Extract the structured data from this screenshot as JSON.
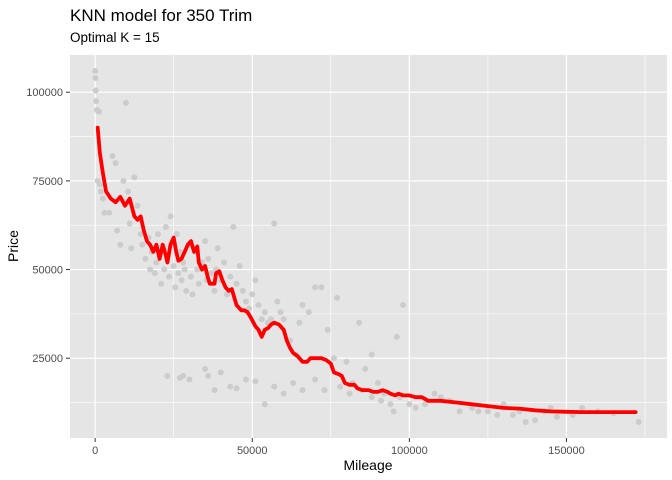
{
  "chart_data": {
    "type": "scatter",
    "title": "KNN model for 350 Trim",
    "subtitle": "Optimal K = 15",
    "xlabel": "Mileage",
    "ylabel": "Price",
    "xlim": [
      -8000,
      182000
    ],
    "ylim": [
      2500,
      110500
    ],
    "x_ticks": [
      0,
      50000,
      100000,
      150000
    ],
    "x_tick_labels": [
      "0",
      "50000",
      "100000",
      "150000"
    ],
    "y_ticks": [
      25000,
      50000,
      75000,
      100000
    ],
    "y_tick_labels": [
      "25000",
      "50000",
      "75000",
      "100000"
    ],
    "grid": true,
    "colors": {
      "panel": "#e5e5e5",
      "grid": "#ffffff",
      "points": "#cccccc",
      "fit_line": "#ff0000"
    },
    "series": [
      {
        "kind": "points",
        "points": [
          [
            0,
            106000
          ],
          [
            100,
            104000
          ],
          [
            200,
            100500
          ],
          [
            300,
            97500
          ],
          [
            600,
            95000
          ],
          [
            1200,
            94500
          ],
          [
            800,
            75000
          ],
          [
            1500,
            74000
          ],
          [
            1800,
            72000
          ],
          [
            2500,
            70000
          ],
          [
            3000,
            66000
          ],
          [
            4500,
            66000
          ],
          [
            5500,
            82000
          ],
          [
            6500,
            80000
          ],
          [
            7000,
            61000
          ],
          [
            8000,
            57000
          ],
          [
            9000,
            75000
          ],
          [
            9800,
            97000
          ],
          [
            10500,
            72000
          ],
          [
            11000,
            63000
          ],
          [
            11500,
            56000
          ],
          [
            12500,
            76000
          ],
          [
            13500,
            68000
          ],
          [
            14500,
            60000
          ],
          [
            15000,
            57000
          ],
          [
            16000,
            53000
          ],
          [
            17000,
            59000
          ],
          [
            17500,
            50000
          ],
          [
            18000,
            55000
          ],
          [
            19000,
            49000
          ],
          [
            19500,
            52000
          ],
          [
            20000,
            60000
          ],
          [
            21000,
            46000
          ],
          [
            21500,
            56000
          ],
          [
            22000,
            50000
          ],
          [
            22500,
            62000
          ],
          [
            23000,
            54000
          ],
          [
            23500,
            48000
          ],
          [
            24000,
            65000
          ],
          [
            24500,
            58000
          ],
          [
            25000,
            51000
          ],
          [
            25500,
            45000
          ],
          [
            26000,
            60000
          ],
          [
            26500,
            49000
          ],
          [
            27000,
            55000
          ],
          [
            27500,
            47000
          ],
          [
            28000,
            52000
          ],
          [
            28500,
            50000
          ],
          [
            29000,
            44000
          ],
          [
            30000,
            57000
          ],
          [
            30500,
            48000
          ],
          [
            31000,
            43000
          ],
          [
            32000,
            55000
          ],
          [
            32500,
            50000
          ],
          [
            33000,
            46000
          ],
          [
            34000,
            52000
          ],
          [
            35000,
            58000
          ],
          [
            35500,
            47000
          ],
          [
            36000,
            53000
          ],
          [
            37000,
            49000
          ],
          [
            38000,
            44000
          ],
          [
            38500,
            50000
          ],
          [
            39000,
            56000
          ],
          [
            40000,
            47000
          ],
          [
            41000,
            52000
          ],
          [
            42000,
            43000
          ],
          [
            43000,
            48000
          ],
          [
            44000,
            62000
          ],
          [
            45000,
            46000
          ],
          [
            46000,
            51000
          ],
          [
            47000,
            44000
          ],
          [
            48000,
            41000
          ],
          [
            49000,
            39000
          ],
          [
            50000,
            43000
          ],
          [
            51000,
            47000
          ],
          [
            52000,
            40000
          ],
          [
            53000,
            36000
          ],
          [
            54000,
            38000
          ],
          [
            55000,
            35000
          ],
          [
            56000,
            36000
          ],
          [
            57000,
            63000
          ],
          [
            58000,
            41000
          ],
          [
            59000,
            38000
          ],
          [
            60000,
            36000
          ],
          [
            62000,
            30000
          ],
          [
            64000,
            26000
          ],
          [
            65000,
            35000
          ],
          [
            66000,
            40000
          ],
          [
            68000,
            38000
          ],
          [
            70000,
            45000
          ],
          [
            72000,
            45000
          ],
          [
            74000,
            33000
          ],
          [
            76000,
            25000
          ],
          [
            77000,
            42000
          ],
          [
            80000,
            24000
          ],
          [
            82000,
            18000
          ],
          [
            84000,
            35000
          ],
          [
            86000,
            22000
          ],
          [
            88000,
            26000
          ],
          [
            90000,
            18000
          ],
          [
            92000,
            15000
          ],
          [
            94000,
            12000
          ],
          [
            96000,
            31000
          ],
          [
            97000,
            14000
          ],
          [
            98000,
            40000
          ],
          [
            100000,
            12000
          ],
          [
            102000,
            11000
          ],
          [
            105000,
            12000
          ],
          [
            108000,
            15000
          ],
          [
            110000,
            14000
          ],
          [
            113000,
            13000
          ],
          [
            116000,
            10000
          ],
          [
            120000,
            11000
          ],
          [
            122000,
            10000
          ],
          [
            125000,
            10000
          ],
          [
            128000,
            9000
          ],
          [
            130000,
            12000
          ],
          [
            133000,
            9000
          ],
          [
            135000,
            10000
          ],
          [
            137000,
            7000
          ],
          [
            140000,
            7500
          ],
          [
            143000,
            10000
          ],
          [
            145000,
            11000
          ],
          [
            147000,
            8500
          ],
          [
            152000,
            9000
          ],
          [
            155000,
            11000
          ],
          [
            160000,
            10000
          ],
          [
            165000,
            9500
          ],
          [
            173000,
            7000
          ],
          [
            23000,
            20000
          ],
          [
            27000,
            19500
          ],
          [
            28000,
            20000
          ],
          [
            30000,
            19000
          ],
          [
            35000,
            22000
          ],
          [
            36000,
            20000
          ],
          [
            38000,
            16000
          ],
          [
            40000,
            21000
          ],
          [
            43000,
            17000
          ],
          [
            45000,
            16500
          ],
          [
            48000,
            19000
          ],
          [
            51000,
            18500
          ],
          [
            54000,
            12000
          ],
          [
            57000,
            17000
          ],
          [
            60000,
            15000
          ],
          [
            63000,
            18000
          ],
          [
            66000,
            16000
          ],
          [
            70000,
            19000
          ],
          [
            73000,
            16000
          ],
          [
            78000,
            17000
          ],
          [
            81000,
            15000
          ],
          [
            85000,
            16000
          ],
          [
            88000,
            14000
          ],
          [
            91000,
            13000
          ],
          [
            95000,
            10000
          ]
        ]
      },
      {
        "kind": "line",
        "name": "",
        "points": [
          [
            800,
            90000
          ],
          [
            1500,
            83000
          ],
          [
            2500,
            77000
          ],
          [
            3500,
            72000
          ],
          [
            5000,
            70000
          ],
          [
            6500,
            69000
          ],
          [
            8000,
            70500
          ],
          [
            9500,
            68000
          ],
          [
            11000,
            70000
          ],
          [
            12500,
            65000
          ],
          [
            13500,
            64000
          ],
          [
            14500,
            65000
          ],
          [
            15500,
            61000
          ],
          [
            16500,
            58000
          ],
          [
            17500,
            57000
          ],
          [
            18500,
            55000
          ],
          [
            19500,
            57000
          ],
          [
            20500,
            53000
          ],
          [
            21500,
            57000
          ],
          [
            22500,
            54000
          ],
          [
            23000,
            52000
          ],
          [
            24000,
            57000
          ],
          [
            25000,
            59000
          ],
          [
            25800,
            55000
          ],
          [
            26500,
            52500
          ],
          [
            27500,
            53000
          ],
          [
            28500,
            55000
          ],
          [
            29500,
            57000
          ],
          [
            30500,
            58000
          ],
          [
            31500,
            55000
          ],
          [
            32500,
            56500
          ],
          [
            33000,
            52000
          ],
          [
            34000,
            50000
          ],
          [
            35000,
            51000
          ],
          [
            35800,
            48000
          ],
          [
            36500,
            46000
          ],
          [
            38000,
            46000
          ],
          [
            38500,
            49000
          ],
          [
            39500,
            49500
          ],
          [
            40500,
            47000
          ],
          [
            41500,
            45000
          ],
          [
            42500,
            44000
          ],
          [
            43500,
            44500
          ],
          [
            45000,
            40000
          ],
          [
            46500,
            38500
          ],
          [
            47500,
            38500
          ],
          [
            48500,
            38000
          ],
          [
            49500,
            36500
          ],
          [
            51000,
            34000
          ],
          [
            52000,
            33000
          ],
          [
            53000,
            31000
          ],
          [
            54000,
            33000
          ],
          [
            55000,
            33500
          ],
          [
            56000,
            34500
          ],
          [
            57000,
            35000
          ],
          [
            58500,
            34500
          ],
          [
            60000,
            33000
          ],
          [
            61000,
            30000
          ],
          [
            62000,
            28000
          ],
          [
            63000,
            26500
          ],
          [
            64500,
            25500
          ],
          [
            66000,
            24000
          ],
          [
            67500,
            24000
          ],
          [
            68500,
            25000
          ],
          [
            70000,
            25000
          ],
          [
            72000,
            25000
          ],
          [
            73500,
            24500
          ],
          [
            75000,
            23500
          ],
          [
            76000,
            21000
          ],
          [
            77500,
            20500
          ],
          [
            78500,
            20000
          ],
          [
            79500,
            18000
          ],
          [
            81000,
            17500
          ],
          [
            82500,
            17500
          ],
          [
            83500,
            16500
          ],
          [
            85000,
            16000
          ],
          [
            87000,
            16000
          ],
          [
            88500,
            15500
          ],
          [
            90000,
            15500
          ],
          [
            91500,
            16000
          ],
          [
            93000,
            15500
          ],
          [
            94000,
            15000
          ],
          [
            95500,
            14500
          ],
          [
            96500,
            15000
          ],
          [
            98000,
            14500
          ],
          [
            100000,
            14500
          ],
          [
            102000,
            14000
          ],
          [
            104000,
            14000
          ],
          [
            106000,
            13000
          ],
          [
            110000,
            13000
          ],
          [
            115000,
            12500
          ],
          [
            120000,
            12000
          ],
          [
            125000,
            11500
          ],
          [
            130000,
            11000
          ],
          [
            135000,
            10800
          ],
          [
            140000,
            10300
          ],
          [
            145000,
            10000
          ],
          [
            150000,
            9900
          ],
          [
            155000,
            9800
          ],
          [
            160000,
            9800
          ],
          [
            165000,
            9800
          ],
          [
            172000,
            9800
          ]
        ]
      }
    ]
  }
}
